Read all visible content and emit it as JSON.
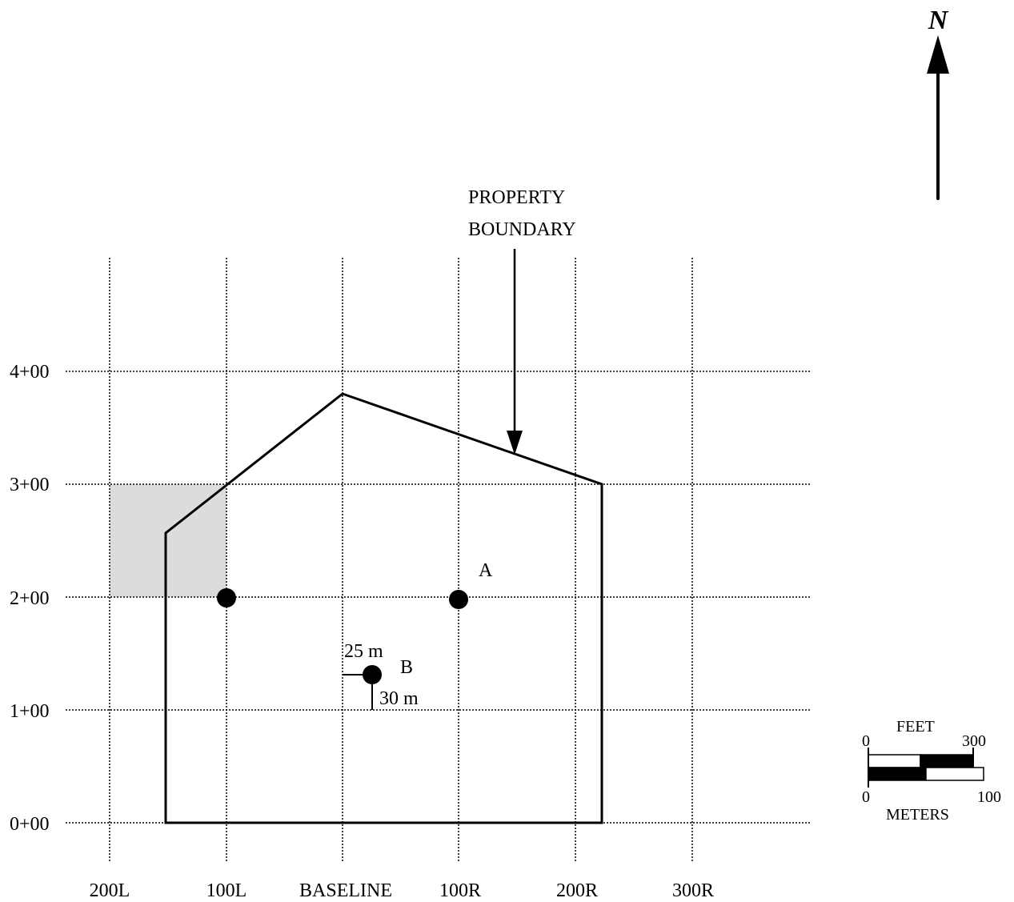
{
  "north_label": "N",
  "property_boundary_label": [
    "PROPERTY",
    "BOUNDARY"
  ],
  "y_axis_labels": [
    "4+00",
    "3+00",
    "2+00",
    "1+00",
    "0+00"
  ],
  "x_axis_labels": [
    "200L",
    "100L",
    "BASELINE",
    "100R",
    "200R",
    "300R"
  ],
  "point_labels": {
    "a": "A",
    "b": "B"
  },
  "offsets": {
    "east": "25 m",
    "north": "30 m"
  },
  "scale_bar": {
    "feet_label": "FEET",
    "feet_zero": "0",
    "feet_max": "300",
    "meters_label": "METERS",
    "meters_zero": "0",
    "meters_max": "100"
  },
  "colors": {
    "line": "#000000",
    "shaded_cell": "#dcdcdc",
    "background": "#ffffff"
  }
}
